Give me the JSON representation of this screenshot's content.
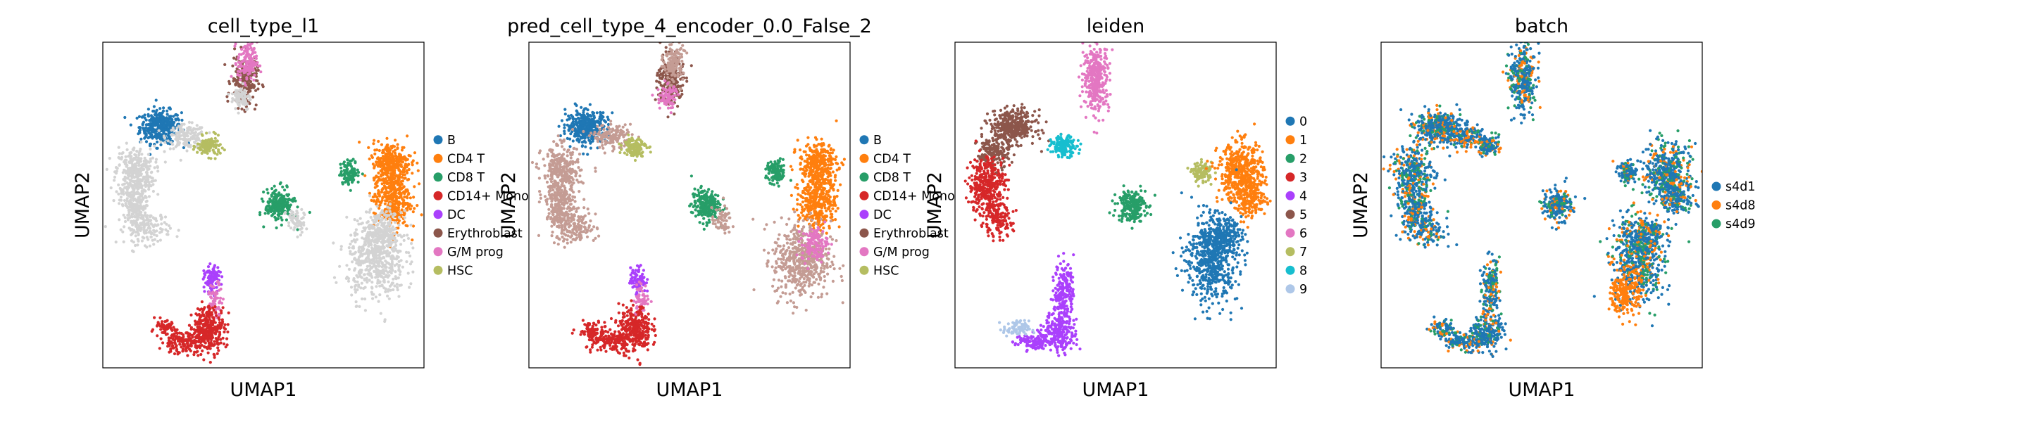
{
  "chart_data": [
    {
      "type": "scatter",
      "title": "cell_type_l1",
      "xlabel": "UMAP1",
      "ylabel": "UMAP2",
      "xlim": [
        0,
        10
      ],
      "ylim": [
        0,
        10
      ],
      "grid": false,
      "legend_placement": "right",
      "categories": [
        {
          "name": "B",
          "color": "#1f77b4"
        },
        {
          "name": "CD4 T",
          "color": "#ff7f0e"
        },
        {
          "name": "CD8 T",
          "color": "#279e68"
        },
        {
          "name": "CD14+ Mono",
          "color": "#d62728"
        },
        {
          "name": "DC",
          "color": "#aa40fc"
        },
        {
          "name": "Erythroblast",
          "color": "#8c564b"
        },
        {
          "name": "G/M prog",
          "color": "#e377c2"
        },
        {
          "name": "HSC",
          "color": "#b5bd61"
        }
      ],
      "clusters": [
        {
          "cat": "B",
          "cx": 1.8,
          "cy": 7.4,
          "sx": 0.32,
          "sy": 0.25,
          "n": 380
        },
        {
          "cat": "other",
          "cx": 2.6,
          "cy": 7.1,
          "sx": 0.3,
          "sy": 0.18,
          "n": 150
        },
        {
          "cat": "other",
          "cx": 1.0,
          "cy": 6.0,
          "sx": 0.3,
          "sy": 0.4,
          "n": 300
        },
        {
          "cat": "other",
          "cx": 1.0,
          "cy": 5.0,
          "sx": 0.22,
          "sy": 0.35,
          "n": 200
        },
        {
          "cat": "other",
          "cx": 1.4,
          "cy": 4.3,
          "sx": 0.35,
          "sy": 0.25,
          "n": 150
        },
        {
          "cat": "HSC",
          "cx": 3.3,
          "cy": 6.8,
          "sx": 0.18,
          "sy": 0.15,
          "n": 120
        },
        {
          "cat": "Erythroblast",
          "cx": 4.4,
          "cy": 8.8,
          "sx": 0.2,
          "sy": 0.4,
          "n": 220
        },
        {
          "cat": "G/M prog",
          "cx": 4.5,
          "cy": 9.4,
          "sx": 0.15,
          "sy": 0.3,
          "n": 140
        },
        {
          "cat": "other",
          "cx": 4.3,
          "cy": 8.3,
          "sx": 0.15,
          "sy": 0.2,
          "n": 80
        },
        {
          "cat": "CD4 T",
          "cx": 9.0,
          "cy": 6.3,
          "sx": 0.3,
          "sy": 0.3,
          "n": 280
        },
        {
          "cat": "CD4 T",
          "cx": 9.0,
          "cy": 5.2,
          "sx": 0.28,
          "sy": 0.5,
          "n": 380
        },
        {
          "cat": "CD8 T",
          "cx": 7.7,
          "cy": 6.0,
          "sx": 0.15,
          "sy": 0.18,
          "n": 110
        },
        {
          "cat": "other",
          "cx": 8.5,
          "cy": 3.3,
          "sx": 0.45,
          "sy": 0.6,
          "n": 500
        },
        {
          "cat": "other",
          "cx": 8.7,
          "cy": 4.2,
          "sx": 0.3,
          "sy": 0.3,
          "n": 200
        },
        {
          "cat": "CD8 T",
          "cx": 5.5,
          "cy": 5.0,
          "sx": 0.22,
          "sy": 0.25,
          "n": 220
        },
        {
          "cat": "other",
          "cx": 6.0,
          "cy": 4.5,
          "sx": 0.15,
          "sy": 0.2,
          "n": 60
        },
        {
          "cat": "DC",
          "cx": 3.4,
          "cy": 2.7,
          "sx": 0.12,
          "sy": 0.2,
          "n": 100
        },
        {
          "cat": "G/M prog",
          "cx": 3.5,
          "cy": 2.1,
          "sx": 0.12,
          "sy": 0.25,
          "n": 60
        },
        {
          "cat": "CD14+ Mono",
          "cx": 3.3,
          "cy": 1.2,
          "sx": 0.25,
          "sy": 0.35,
          "n": 300
        },
        {
          "cat": "CD14+ Mono",
          "cx": 2.5,
          "cy": 0.8,
          "sx": 0.35,
          "sy": 0.18,
          "n": 150
        },
        {
          "cat": "CD14+ Mono",
          "cx": 1.9,
          "cy": 1.2,
          "sx": 0.2,
          "sy": 0.12,
          "n": 60
        }
      ]
    },
    {
      "type": "scatter",
      "title": "pred_cell_type_4_encoder_0.0_False_2",
      "xlabel": "UMAP1",
      "ylabel": "UMAP2",
      "xlim": [
        0,
        10
      ],
      "ylim": [
        0,
        10
      ],
      "grid": false,
      "legend_placement": "right",
      "categories": [
        {
          "name": "B",
          "color": "#1f77b4"
        },
        {
          "name": "CD4 T",
          "color": "#ff7f0e"
        },
        {
          "name": "CD8 T",
          "color": "#279e68"
        },
        {
          "name": "CD14+ Mono",
          "color": "#d62728"
        },
        {
          "name": "DC",
          "color": "#aa40fc"
        },
        {
          "name": "Erythroblast",
          "color": "#8c564b"
        },
        {
          "name": "G/M prog",
          "color": "#e377c2"
        },
        {
          "name": "HSC",
          "color": "#b5bd61"
        }
      ],
      "extra_colors": {
        "mauve": "#c49c94"
      },
      "clusters": [
        {
          "cat": "B",
          "cx": 1.8,
          "cy": 7.4,
          "sx": 0.32,
          "sy": 0.25,
          "n": 380
        },
        {
          "cat": "mauve",
          "cx": 2.6,
          "cy": 7.1,
          "sx": 0.3,
          "sy": 0.18,
          "n": 150
        },
        {
          "cat": "mauve",
          "cx": 1.0,
          "cy": 6.0,
          "sx": 0.3,
          "sy": 0.4,
          "n": 300
        },
        {
          "cat": "mauve",
          "cx": 1.0,
          "cy": 5.0,
          "sx": 0.22,
          "sy": 0.35,
          "n": 200
        },
        {
          "cat": "mauve",
          "cx": 1.4,
          "cy": 4.3,
          "sx": 0.35,
          "sy": 0.25,
          "n": 150
        },
        {
          "cat": "HSC",
          "cx": 3.3,
          "cy": 6.8,
          "sx": 0.18,
          "sy": 0.15,
          "n": 120
        },
        {
          "cat": "Erythroblast",
          "cx": 4.4,
          "cy": 8.8,
          "sx": 0.2,
          "sy": 0.4,
          "n": 220
        },
        {
          "cat": "mauve",
          "cx": 4.5,
          "cy": 9.4,
          "sx": 0.15,
          "sy": 0.3,
          "n": 140
        },
        {
          "cat": "G/M prog",
          "cx": 4.3,
          "cy": 8.3,
          "sx": 0.15,
          "sy": 0.2,
          "n": 80
        },
        {
          "cat": "CD4 T",
          "cx": 9.0,
          "cy": 6.3,
          "sx": 0.3,
          "sy": 0.3,
          "n": 280
        },
        {
          "cat": "CD4 T",
          "cx": 9.0,
          "cy": 5.2,
          "sx": 0.28,
          "sy": 0.5,
          "n": 380
        },
        {
          "cat": "CD8 T",
          "cx": 7.7,
          "cy": 6.0,
          "sx": 0.15,
          "sy": 0.18,
          "n": 110
        },
        {
          "cat": "mauve",
          "cx": 8.5,
          "cy": 3.3,
          "sx": 0.45,
          "sy": 0.6,
          "n": 500
        },
        {
          "cat": "G/M prog",
          "cx": 8.9,
          "cy": 3.8,
          "sx": 0.2,
          "sy": 0.25,
          "n": 120
        },
        {
          "cat": "CD8 T",
          "cx": 5.5,
          "cy": 5.0,
          "sx": 0.22,
          "sy": 0.25,
          "n": 220
        },
        {
          "cat": "mauve",
          "cx": 6.0,
          "cy": 4.5,
          "sx": 0.15,
          "sy": 0.2,
          "n": 60
        },
        {
          "cat": "DC",
          "cx": 3.4,
          "cy": 2.7,
          "sx": 0.12,
          "sy": 0.2,
          "n": 100
        },
        {
          "cat": "G/M prog",
          "cx": 3.5,
          "cy": 2.1,
          "sx": 0.12,
          "sy": 0.25,
          "n": 60
        },
        {
          "cat": "CD14+ Mono",
          "cx": 3.3,
          "cy": 1.2,
          "sx": 0.25,
          "sy": 0.35,
          "n": 300
        },
        {
          "cat": "CD14+ Mono",
          "cx": 2.5,
          "cy": 0.8,
          "sx": 0.35,
          "sy": 0.18,
          "n": 150
        },
        {
          "cat": "CD14+ Mono",
          "cx": 1.9,
          "cy": 1.2,
          "sx": 0.2,
          "sy": 0.12,
          "n": 60
        }
      ]
    },
    {
      "type": "scatter",
      "title": "leiden",
      "xlabel": "UMAP1",
      "ylabel": "UMAP2",
      "xlim": [
        0,
        10
      ],
      "ylim": [
        0,
        10
      ],
      "grid": false,
      "legend_placement": "right",
      "categories": [
        {
          "name": "0",
          "color": "#1f77b4"
        },
        {
          "name": "1",
          "color": "#ff7f0e"
        },
        {
          "name": "2",
          "color": "#279e68"
        },
        {
          "name": "3",
          "color": "#d62728"
        },
        {
          "name": "4",
          "color": "#aa40fc"
        },
        {
          "name": "5",
          "color": "#8c564b"
        },
        {
          "name": "6",
          "color": "#e377c2"
        },
        {
          "name": "7",
          "color": "#b5bd61"
        },
        {
          "name": "8",
          "color": "#17becf"
        },
        {
          "name": "9",
          "color": "#aec7e8"
        }
      ],
      "clusters": [
        {
          "cat": "5",
          "cx": 1.8,
          "cy": 7.4,
          "sx": 0.35,
          "sy": 0.25,
          "n": 380
        },
        {
          "cat": "5",
          "cx": 1.2,
          "cy": 6.6,
          "sx": 0.25,
          "sy": 0.25,
          "n": 150
        },
        {
          "cat": "8",
          "cx": 3.4,
          "cy": 6.8,
          "sx": 0.2,
          "sy": 0.15,
          "n": 150
        },
        {
          "cat": "3",
          "cx": 1.0,
          "cy": 5.6,
          "sx": 0.28,
          "sy": 0.45,
          "n": 380
        },
        {
          "cat": "3",
          "cx": 1.3,
          "cy": 4.5,
          "sx": 0.25,
          "sy": 0.25,
          "n": 120
        },
        {
          "cat": "6",
          "cx": 4.4,
          "cy": 8.9,
          "sx": 0.2,
          "sy": 0.5,
          "n": 350
        },
        {
          "cat": "7",
          "cx": 7.7,
          "cy": 6.0,
          "sx": 0.15,
          "sy": 0.15,
          "n": 110
        },
        {
          "cat": "1",
          "cx": 8.9,
          "cy": 6.0,
          "sx": 0.35,
          "sy": 0.45,
          "n": 450
        },
        {
          "cat": "1",
          "cx": 9.2,
          "cy": 5.2,
          "sx": 0.25,
          "sy": 0.3,
          "n": 180
        },
        {
          "cat": "2",
          "cx": 5.5,
          "cy": 5.0,
          "sx": 0.22,
          "sy": 0.25,
          "n": 220
        },
        {
          "cat": "0",
          "cx": 8.0,
          "cy": 3.3,
          "sx": 0.4,
          "sy": 0.65,
          "n": 550
        },
        {
          "cat": "0",
          "cx": 8.3,
          "cy": 4.1,
          "sx": 0.3,
          "sy": 0.25,
          "n": 180
        },
        {
          "cat": "4",
          "cx": 3.4,
          "cy": 2.4,
          "sx": 0.15,
          "sy": 0.45,
          "n": 180
        },
        {
          "cat": "4",
          "cx": 3.3,
          "cy": 1.1,
          "sx": 0.25,
          "sy": 0.3,
          "n": 220
        },
        {
          "cat": "4",
          "cx": 2.5,
          "cy": 0.8,
          "sx": 0.3,
          "sy": 0.15,
          "n": 120
        },
        {
          "cat": "9",
          "cx": 1.9,
          "cy": 1.2,
          "sx": 0.2,
          "sy": 0.12,
          "n": 80
        }
      ]
    },
    {
      "type": "scatter",
      "title": "batch",
      "xlabel": "UMAP1",
      "ylabel": "UMAP2",
      "xlim": [
        0,
        10
      ],
      "ylim": [
        0,
        10
      ],
      "grid": false,
      "legend_placement": "right",
      "categories": [
        {
          "name": "s4d1",
          "color": "#1f77b4"
        },
        {
          "name": "s4d8",
          "color": "#ff7f0e"
        },
        {
          "name": "s4d9",
          "color": "#279e68"
        }
      ],
      "clusters": [
        {
          "cat": "mix",
          "cx": 1.8,
          "cy": 7.4,
          "sx": 0.35,
          "sy": 0.25,
          "n": 380
        },
        {
          "cat": "mix",
          "cx": 2.6,
          "cy": 7.1,
          "sx": 0.3,
          "sy": 0.18,
          "n": 150
        },
        {
          "cat": "mix",
          "cx": 1.0,
          "cy": 6.0,
          "sx": 0.3,
          "sy": 0.4,
          "n": 300
        },
        {
          "cat": "mix",
          "cx": 1.0,
          "cy": 5.0,
          "sx": 0.22,
          "sy": 0.35,
          "n": 200
        },
        {
          "cat": "mix",
          "cx": 1.4,
          "cy": 4.3,
          "sx": 0.35,
          "sy": 0.25,
          "n": 150
        },
        {
          "cat": "mix",
          "cx": 3.3,
          "cy": 6.8,
          "sx": 0.18,
          "sy": 0.15,
          "n": 120
        },
        {
          "cat": "mix",
          "cx": 4.4,
          "cy": 8.9,
          "sx": 0.2,
          "sy": 0.5,
          "n": 350
        },
        {
          "cat": "mix",
          "cx": 7.7,
          "cy": 6.0,
          "sx": 0.15,
          "sy": 0.15,
          "n": 110
        },
        {
          "cat": "mix",
          "cx": 8.9,
          "cy": 6.0,
          "sx": 0.35,
          "sy": 0.45,
          "n": 450
        },
        {
          "cat": "mix",
          "cx": 9.2,
          "cy": 5.2,
          "sx": 0.25,
          "sy": 0.3,
          "n": 180
        },
        {
          "cat": "mix",
          "cx": 5.5,
          "cy": 5.0,
          "sx": 0.22,
          "sy": 0.25,
          "n": 220
        },
        {
          "cat": "mix",
          "cx": 8.0,
          "cy": 3.3,
          "sx": 0.4,
          "sy": 0.65,
          "n": 550
        },
        {
          "cat": "s4d8",
          "cx": 7.6,
          "cy": 2.3,
          "sx": 0.22,
          "sy": 0.35,
          "n": 200
        },
        {
          "cat": "mix",
          "cx": 8.3,
          "cy": 4.1,
          "sx": 0.3,
          "sy": 0.25,
          "n": 180
        },
        {
          "cat": "mix",
          "cx": 3.4,
          "cy": 2.4,
          "sx": 0.15,
          "sy": 0.45,
          "n": 180
        },
        {
          "cat": "mix",
          "cx": 3.3,
          "cy": 1.1,
          "sx": 0.25,
          "sy": 0.3,
          "n": 220
        },
        {
          "cat": "mix",
          "cx": 2.5,
          "cy": 0.8,
          "sx": 0.3,
          "sy": 0.15,
          "n": 120
        },
        {
          "cat": "mix",
          "cx": 1.9,
          "cy": 1.2,
          "sx": 0.2,
          "sy": 0.12,
          "n": 80
        }
      ]
    }
  ]
}
